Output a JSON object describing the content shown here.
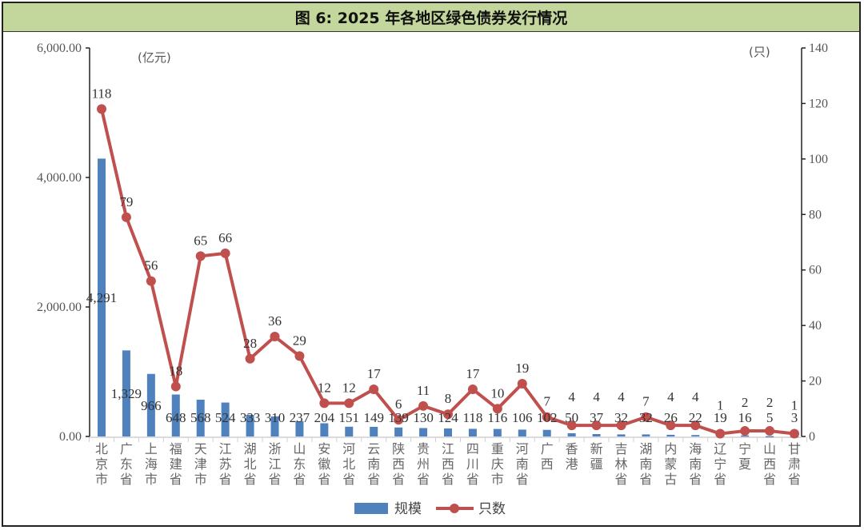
{
  "title": "图 6:  2025 年各地区绿色债券发行情况",
  "left_unit": "(亿元)",
  "right_unit": "(只)",
  "left_ticks": [
    "0.00",
    "2,000.00",
    "4,000.00",
    "6,000.00"
  ],
  "right_ticks": [
    "0",
    "20",
    "40",
    "60",
    "80",
    "100",
    "120",
    "140"
  ],
  "legend": [
    {
      "label": "规模",
      "type": "bar",
      "color": "#4f81bd"
    },
    {
      "label": "只数",
      "type": "line",
      "color": "#c0504d"
    }
  ],
  "colors": {
    "bar": "#4f81bd",
    "line": "#c0504d",
    "title_bg": "#c3d69b"
  },
  "chart_data": {
    "type": "bar+line",
    "title": "图 6:  2025 年各地区绿色债券发行情况",
    "categories": [
      "北京市",
      "广东省",
      "上海市",
      "福建省",
      "天津市",
      "江苏省",
      "湖北省",
      "浙江省",
      "山东省",
      "安徽省",
      "河北省",
      "云南省",
      "陕西省",
      "贵州省",
      "江西省",
      "四川省",
      "重庆市",
      "河南省",
      "广西",
      "香港",
      "新疆",
      "吉林省",
      "湖南省",
      "内蒙古",
      "海南省",
      "辽宁省",
      "宁夏",
      "山西省",
      "甘肃省"
    ],
    "series": [
      {
        "name": "规模",
        "type": "bar",
        "axis": "left",
        "unit": "亿元",
        "values": [
          4291,
          1329,
          966,
          648,
          568,
          524,
          333,
          310,
          237,
          204,
          151,
          149,
          139,
          130,
          124,
          118,
          116,
          106,
          102,
          50,
          37,
          32,
          32,
          26,
          22,
          19,
          16,
          5,
          3
        ],
        "labels": [
          "4,291",
          "1,329",
          "966",
          "648",
          "568",
          "524",
          "333",
          "310",
          "237",
          "204",
          "151",
          "149",
          "139",
          "130",
          "124",
          "118",
          "116",
          "106",
          "102",
          "50",
          "37",
          "32",
          "32",
          "26",
          "22",
          "19",
          "16",
          "5",
          "3"
        ]
      },
      {
        "name": "只数",
        "type": "line",
        "axis": "right",
        "unit": "只",
        "values": [
          118,
          79,
          56,
          18,
          65,
          66,
          28,
          36,
          29,
          12,
          12,
          17,
          6,
          11,
          8,
          17,
          10,
          19,
          7,
          4,
          4,
          4,
          7,
          4,
          4,
          1,
          2,
          2,
          1
        ]
      }
    ],
    "ylabel_left": "(亿元)",
    "ylim_left": [
      0,
      6000
    ],
    "ylabel_right": "(只)",
    "ylim_right": [
      0,
      140
    ],
    "legend_position": "bottom",
    "grid": false
  }
}
